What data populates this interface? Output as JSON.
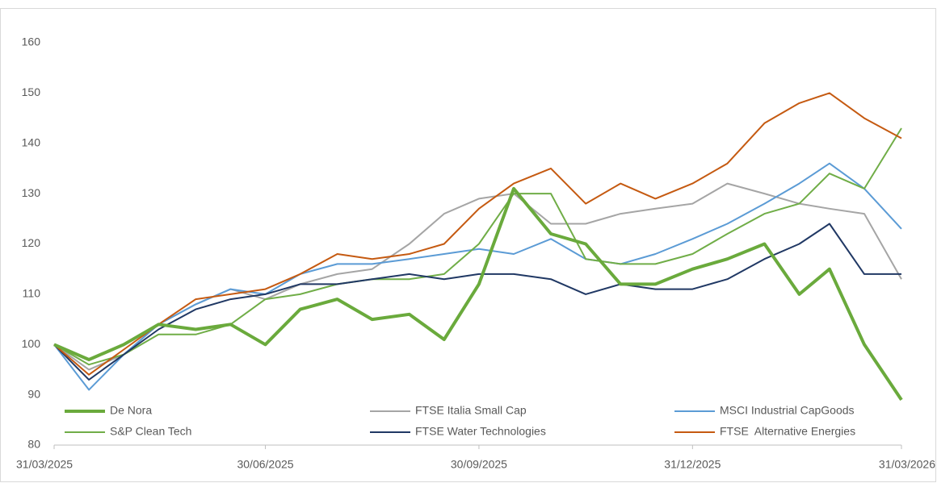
{
  "chart_data": {
    "type": "line",
    "x": [
      "2025-03-31",
      "2025-04-15",
      "2025-04-30",
      "2025-05-15",
      "2025-05-31",
      "2025-06-15",
      "2025-06-30",
      "2025-07-15",
      "2025-07-31",
      "2025-08-15",
      "2025-08-31",
      "2025-09-15",
      "2025-09-30",
      "2025-10-15",
      "2025-10-31",
      "2025-11-15",
      "2025-11-30",
      "2025-12-15",
      "2025-12-31",
      "2026-01-15",
      "2026-01-31",
      "2026-02-15",
      "2026-02-28",
      "2026-03-15",
      "2026-03-31"
    ],
    "series": [
      {
        "name": "De Nora",
        "color": "#6aaa3c",
        "line_width": 4,
        "values": [
          100,
          97,
          100,
          104,
          103,
          104,
          100,
          107,
          109,
          105,
          106,
          101,
          112,
          131,
          122,
          120,
          112,
          112,
          115,
          117,
          120,
          110,
          115,
          100,
          89
        ]
      },
      {
        "name": "FTSE Italia Small Cap",
        "color": "#a5a5a5",
        "line_width": 2,
        "values": [
          100,
          95,
          98,
          104,
          108,
          111,
          109,
          112,
          114,
          115,
          120,
          126,
          129,
          130,
          124,
          124,
          126,
          127,
          128,
          132,
          130,
          128,
          127,
          126,
          113
        ]
      },
      {
        "name": "MSCI Industrial CapGoods",
        "color": "#5b9bd5",
        "line_width": 2,
        "values": [
          100,
          91,
          98,
          104,
          108,
          111,
          110,
          114,
          116,
          116,
          117,
          118,
          119,
          118,
          121,
          117,
          116,
          118,
          121,
          124,
          128,
          132,
          136,
          131,
          123
        ]
      },
      {
        "name": "S&P Clean Tech",
        "color": "#70ad47",
        "line_width": 2,
        "values": [
          100,
          96,
          98,
          102,
          102,
          104,
          109,
          110,
          112,
          113,
          113,
          114,
          120,
          130,
          130,
          117,
          116,
          116,
          118,
          122,
          126,
          128,
          134,
          131,
          143
        ]
      },
      {
        "name": "FTSE Water Technologies",
        "color": "#203864",
        "line_width": 2,
        "values": [
          100,
          93,
          98,
          103,
          107,
          109,
          110,
          112,
          112,
          113,
          114,
          113,
          114,
          114,
          113,
          110,
          112,
          111,
          111,
          113,
          117,
          120,
          124,
          114,
          114
        ]
      },
      {
        "name": "FTSE  Alternative Energies",
        "color": "#c55a11",
        "line_width": 2,
        "values": [
          100,
          94,
          99,
          104,
          109,
          110,
          111,
          114,
          118,
          117,
          118,
          120,
          127,
          132,
          135,
          128,
          132,
          129,
          132,
          136,
          144,
          148,
          150,
          145,
          141
        ]
      }
    ],
    "xlim": [
      "2025-03-31",
      "2026-03-31"
    ],
    "xticks": [
      {
        "value": "2025-03-31",
        "label": "31/03/2025"
      },
      {
        "value": "2025-06-30",
        "label": "30/06/2025"
      },
      {
        "value": "2025-09-30",
        "label": "30/09/2025"
      },
      {
        "value": "2025-12-31",
        "label": "31/12/2025"
      },
      {
        "value": "2026-03-31",
        "label": "31/03/2026"
      }
    ],
    "ylim": [
      80,
      160
    ],
    "yticks": [
      80,
      90,
      100,
      110,
      120,
      130,
      140,
      150,
      160
    ],
    "grid": false,
    "legend": "bottom"
  }
}
